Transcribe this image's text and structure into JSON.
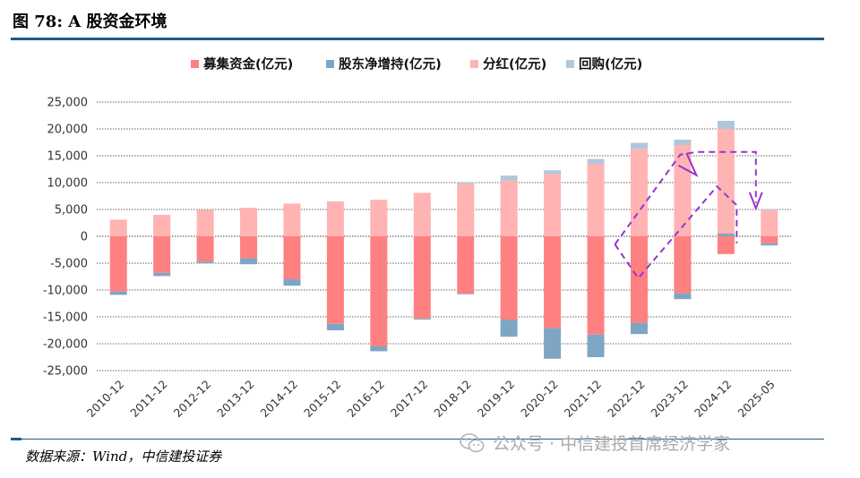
{
  "figure": {
    "title": "图 78: A 股资金环境",
    "source": "数据来源：Wind，中信建投证券",
    "watermark": "公众号 · 中信建投首席经济学家"
  },
  "colors": {
    "accent": "#1f5a8a",
    "fundraising": "#ff8080",
    "holder_net": "#7ea6c4",
    "dividend": "#ffb3b3",
    "buyback": "#afc7db",
    "annotation": "#9933cc"
  },
  "chart_data": {
    "type": "bar",
    "stacked": true,
    "unit": "亿元",
    "categories": [
      "2010-12",
      "2011-12",
      "2012-12",
      "2013-12",
      "2014-12",
      "2015-12",
      "2016-12",
      "2017-12",
      "2018-12",
      "2019-12",
      "2020-12",
      "2021-12",
      "2022-12",
      "2023-12",
      "2024-12",
      "2025-05"
    ],
    "series": [
      {
        "name": "募集资金(亿元)",
        "values": [
          -10300,
          -6800,
          -4700,
          -4100,
          -8000,
          -16300,
          -20500,
          -15300,
          -10700,
          -15500,
          -17100,
          -18300,
          -16100,
          -10600,
          -3300,
          -1300
        ]
      },
      {
        "name": "股东净增持(亿元)",
        "values": [
          -600,
          -600,
          -300,
          -1100,
          -1200,
          -1200,
          -900,
          -200,
          -100,
          -3200,
          -5700,
          -4200,
          -2100,
          -1100,
          0,
          -400
        ]
      },
      {
        "name": "分红(亿元)",
        "values": [
          3100,
          4000,
          4900,
          5300,
          6100,
          6500,
          6800,
          8100,
          9800,
          10400,
          11600,
          13500,
          16300,
          17000,
          20000,
          4900
        ]
      },
      {
        "name": "回购(亿元)",
        "values": [
          0,
          0,
          0,
          0,
          0,
          0,
          0,
          0,
          300,
          900,
          700,
          900,
          1100,
          1000,
          1500,
          200
        ]
      }
    ],
    "extra_segments": [
      {
        "category": "2024-12",
        "series": "股东净增持(亿元)",
        "base": 0,
        "value": 500
      }
    ],
    "y_axis": {
      "ylim": [
        -25000,
        25000
      ],
      "ticks": [
        25000,
        20000,
        15000,
        10000,
        5000,
        0,
        -5000,
        -10000,
        -15000,
        -20000,
        -25000
      ],
      "tick_labels": [
        "25,000",
        "20,000",
        "15,000",
        "10,000",
        "5,000",
        "0",
        "-5,000",
        "-10,000",
        "-15,000",
        "-20,000",
        "-25,000"
      ]
    },
    "grid": "horizontal dashed",
    "legend": "top-center",
    "annotation": "dashed arrow rising from 2022-12 to 2024-12, then turning down toward 2025-05"
  }
}
